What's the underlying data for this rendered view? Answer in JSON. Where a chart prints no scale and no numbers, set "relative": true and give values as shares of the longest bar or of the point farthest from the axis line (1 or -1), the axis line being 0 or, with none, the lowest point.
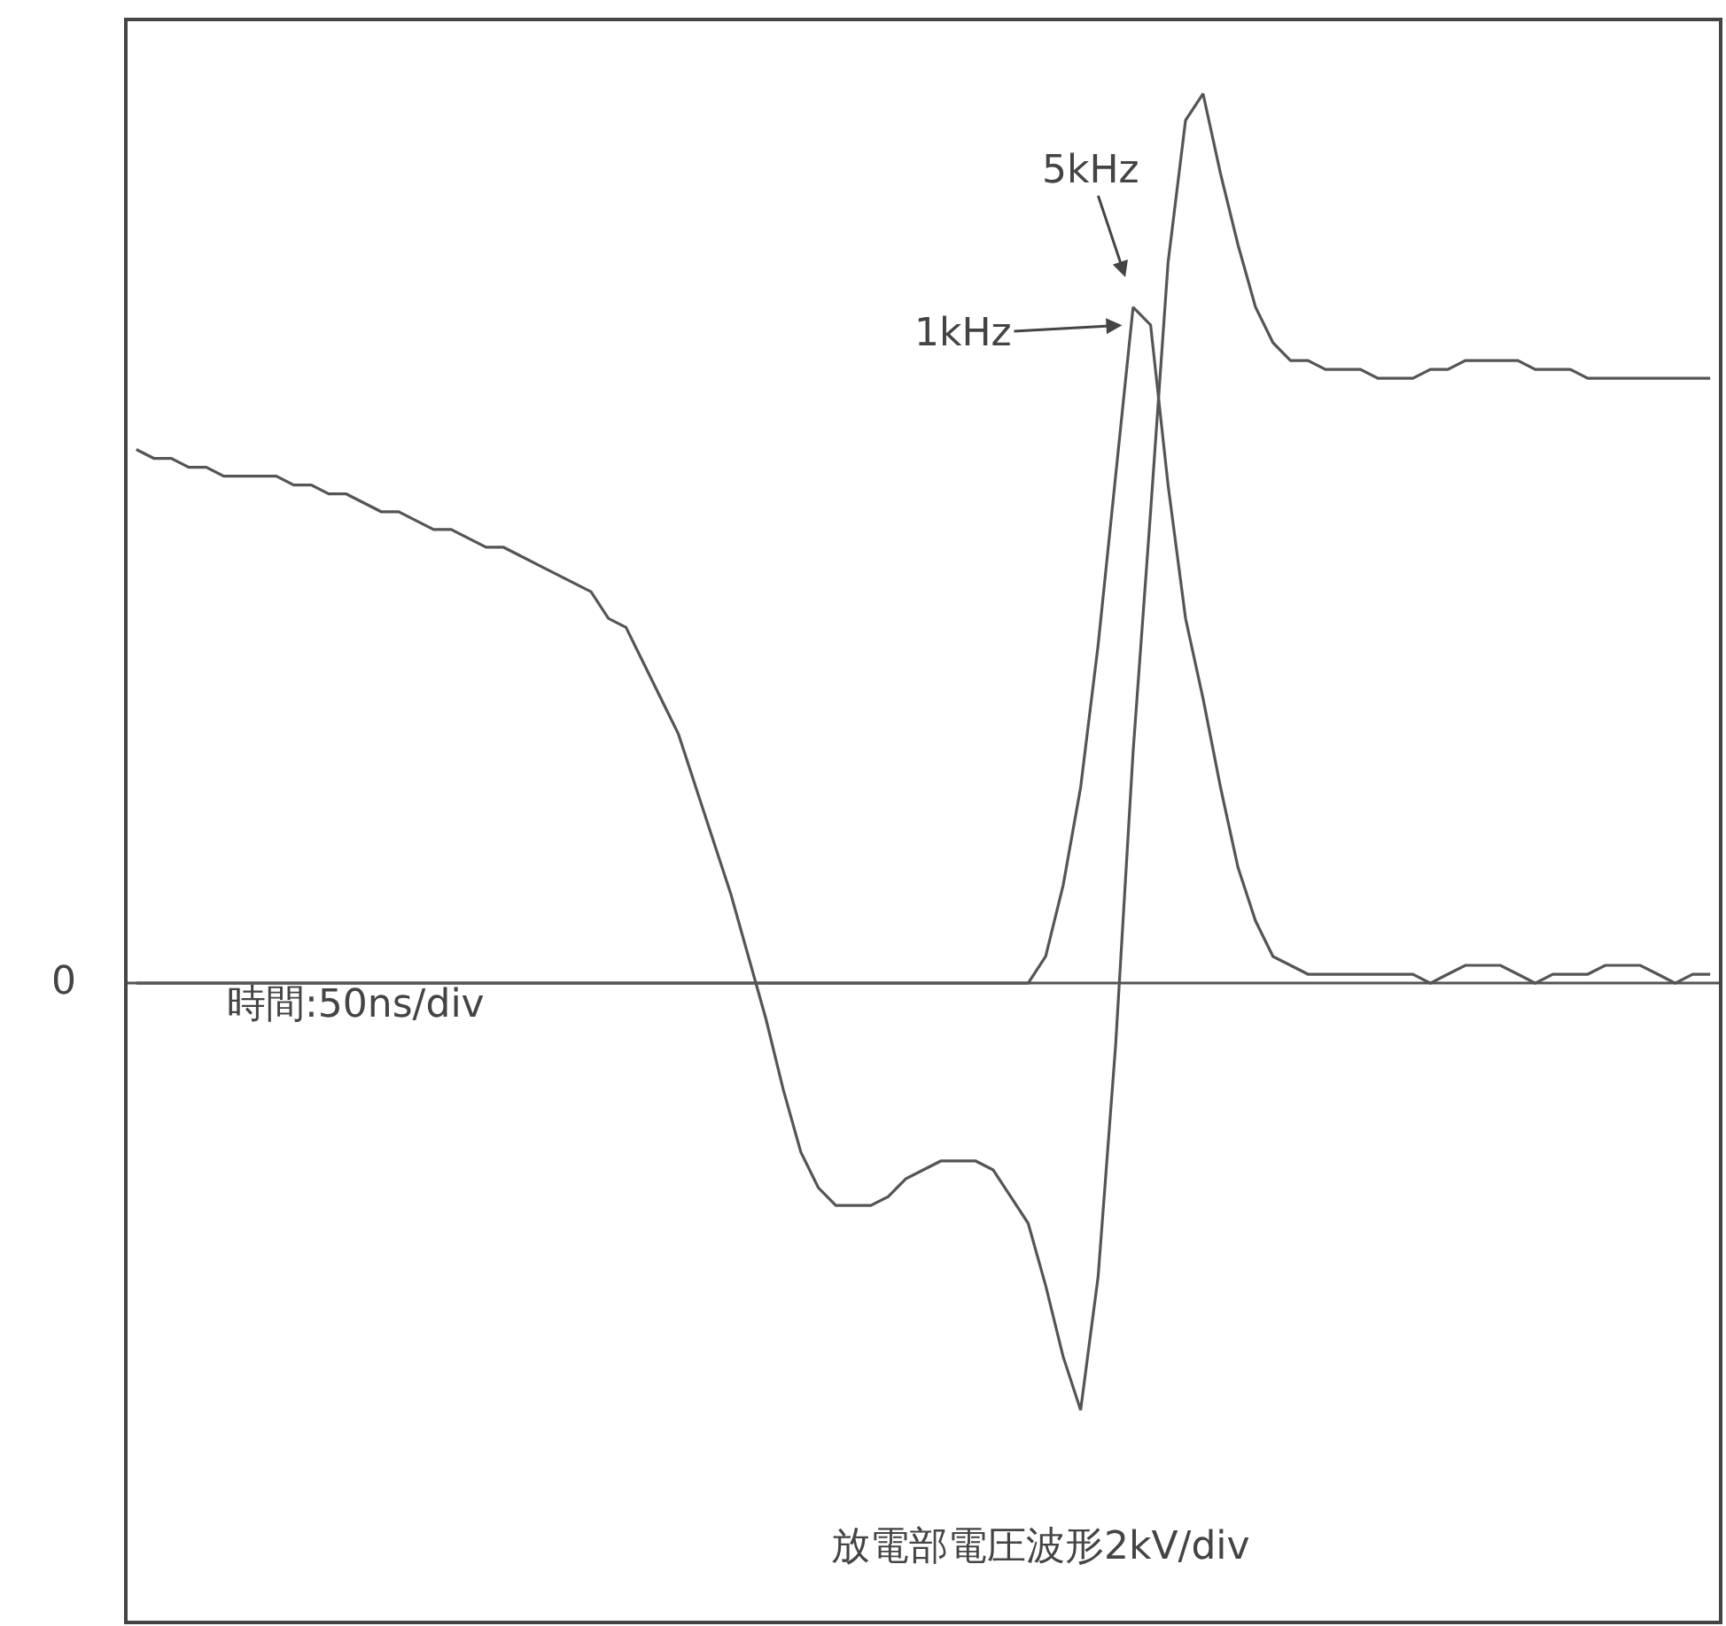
{
  "chart_data": {
    "type": "line",
    "relative": true,
    "grid": false,
    "marker": "none",
    "line_style": "solid",
    "categories": [
      null,
      null,
      null,
      null,
      null,
      null,
      null,
      null,
      null,
      null,
      null,
      null,
      null,
      null,
      null,
      null,
      null,
      null,
      null,
      null,
      null,
      null,
      null,
      null,
      null,
      null,
      null,
      null,
      null,
      null,
      null,
      null,
      null,
      null,
      null,
      null,
      null,
      null,
      null,
      null,
      null,
      null,
      null,
      null,
      null,
      null,
      null,
      null,
      null,
      null,
      null,
      null,
      null,
      null,
      null,
      null,
      null,
      null,
      null,
      null,
      null,
      null,
      null,
      null,
      null,
      null,
      null,
      null,
      null,
      null,
      null,
      null,
      null,
      null,
      null,
      null,
      null,
      null,
      null,
      null,
      null,
      null,
      null,
      null,
      null,
      null,
      null,
      null,
      null,
      null,
      null
    ],
    "series": [
      {
        "color": "#555555",
        "values": [
          0.6,
          0.59,
          0.59,
          0.58,
          0.58,
          0.57,
          0.57,
          0.57,
          0.57,
          0.56,
          0.56,
          0.55,
          0.55,
          0.54,
          0.53,
          0.53,
          0.52,
          0.51,
          0.51,
          0.5,
          0.49,
          0.49,
          0.48,
          0.47,
          0.46,
          0.45,
          0.44,
          0.41,
          0.4,
          0.36,
          0.32,
          0.28,
          0.22,
          0.16,
          0.1,
          0.03,
          -0.04,
          -0.12,
          -0.19,
          -0.23,
          -0.25,
          -0.25,
          -0.25,
          -0.24,
          -0.22,
          -0.21,
          -0.2,
          -0.2,
          -0.2,
          -0.21,
          -0.24,
          -0.27,
          -0.34,
          -0.42,
          -0.48,
          -0.33,
          -0.07,
          0.26,
          0.53,
          0.81,
          0.97,
          1.0,
          0.91,
          0.83,
          0.76,
          0.72,
          0.7,
          0.7,
          0.69,
          0.69,
          0.69,
          0.68,
          0.68,
          0.68,
          0.69,
          0.69,
          0.7,
          0.7,
          0.7,
          0.7,
          0.69,
          0.69,
          0.69,
          0.68,
          0.68,
          0.68,
          0.68,
          0.68,
          0.68,
          0.68,
          0.68
        ]
      },
      {
        "color": "#555555",
        "values": [
          0,
          0,
          0,
          0,
          0,
          0,
          0,
          0,
          0,
          0,
          0,
          0,
          0,
          0,
          0,
          0,
          0,
          0,
          0,
          0,
          0,
          0,
          0,
          0,
          0,
          0,
          0,
          0,
          0,
          0,
          0,
          0,
          0,
          0,
          0,
          0,
          0,
          0,
          0,
          0,
          0,
          0,
          0,
          0,
          0,
          0,
          0,
          0,
          0,
          0,
          0,
          0.0,
          0.03,
          0.11,
          0.22,
          0.38,
          0.57,
          0.76,
          0.74,
          0.56,
          0.41,
          0.32,
          0.22,
          0.13,
          0.07,
          0.03,
          0.02,
          0.01,
          0.01,
          0.01,
          0.01,
          0.01,
          0.01,
          0.01,
          0.0,
          0.01,
          0.02,
          0.02,
          0.02,
          0.01,
          0.0,
          0.01,
          0.01,
          0.01,
          0.02,
          0.02,
          0.02,
          0.01,
          0.0,
          0.01,
          0.01
        ]
      }
    ],
    "annotations": [
      "5kHz",
      "1kHz",
      "0",
      "時間:50ns/div",
      "放電部電圧波形2kV/div"
    ]
  }
}
